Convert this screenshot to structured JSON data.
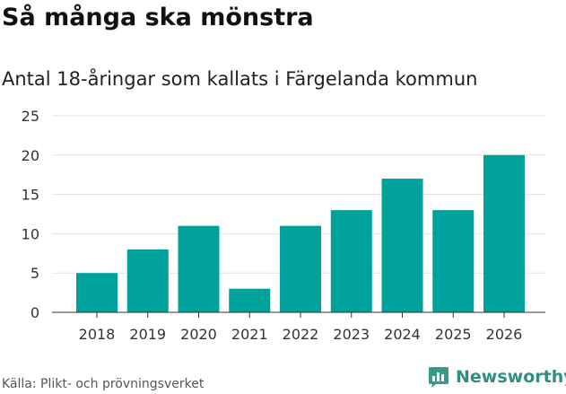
{
  "chart_data": {
    "type": "bar",
    "title": "Så många ska mönstra",
    "subtitle": "Antal 18-åringar som kallats i Färgelanda kommun",
    "categories": [
      "2018",
      "2019",
      "2020",
      "2021",
      "2022",
      "2023",
      "2024",
      "2025",
      "2026"
    ],
    "values": [
      5,
      8,
      11,
      3,
      11,
      13,
      17,
      13,
      20
    ],
    "xlabel": "",
    "ylabel": "",
    "ylim": [
      0,
      25
    ],
    "yticks": [
      "0",
      "5",
      "10",
      "15",
      "20",
      "25"
    ],
    "grid": true,
    "bar_color": "#00a19a",
    "grid_color": "#e3e3e3"
  },
  "source": "Källa: Plikt- och prövningsverket",
  "brand": {
    "name": "Newsworthy",
    "icon": "newsworthy-logo-icon",
    "color": "#2f8f7f"
  }
}
